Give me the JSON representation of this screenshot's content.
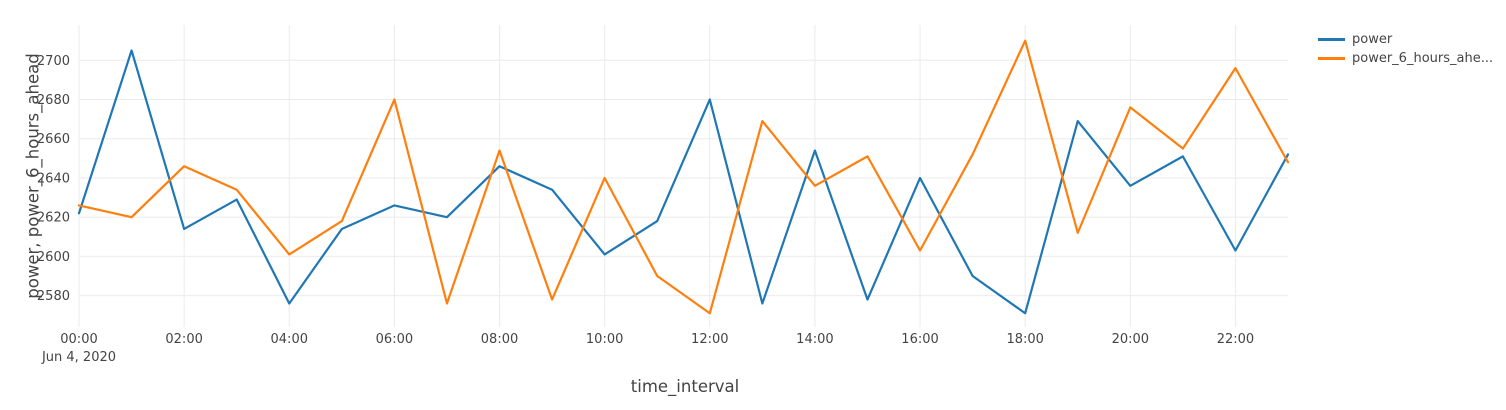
{
  "chart": {
    "legend": {
      "items": [
        {
          "label": "power"
        },
        {
          "label": "power_6_hours_ahe..."
        }
      ]
    }
  },
  "chart_data": {
    "type": "line",
    "title": "",
    "xlabel": "time_interval",
    "ylabel": "power, power_6_hours_ahead",
    "x_axis_secondary_label": "Jun 4, 2020",
    "categories": [
      "00:00",
      "01:00",
      "02:00",
      "03:00",
      "04:00",
      "05:00",
      "06:00",
      "07:00",
      "08:00",
      "09:00",
      "10:00",
      "11:00",
      "12:00",
      "13:00",
      "14:00",
      "15:00",
      "16:00",
      "17:00",
      "18:00",
      "19:00",
      "20:00",
      "21:00",
      "22:00",
      "23:00"
    ],
    "x_tick_labels": [
      "00:00",
      "02:00",
      "04:00",
      "06:00",
      "08:00",
      "10:00",
      "12:00",
      "14:00",
      "16:00",
      "18:00",
      "20:00",
      "22:00"
    ],
    "y_ticks": [
      2580,
      2600,
      2620,
      2640,
      2660,
      2680,
      2700
    ],
    "ylim": [
      2564,
      2718
    ],
    "grid": true,
    "legend_position": "top-right",
    "background": "#ffffff",
    "grid_color": "#ebebeb",
    "text_color": "#444444",
    "series": [
      {
        "name": "power",
        "legend_label": "power",
        "color": "#1f77b4",
        "values": [
          2622,
          2705,
          2614,
          2629,
          2576,
          2614,
          2626,
          2620,
          2646,
          2634,
          2601,
          2618,
          2680,
          2576,
          2654,
          2578,
          2640,
          2590,
          2571,
          2669,
          2636,
          2651,
          2603,
          2652
        ]
      },
      {
        "name": "power_6_hours_ahead",
        "legend_label": "power_6_hours_ahe...",
        "color": "#ff7f0e",
        "values": [
          2626,
          2620,
          2646,
          2634,
          2601,
          2618,
          2680,
          2576,
          2654,
          2578,
          2640,
          2590,
          2571,
          2669,
          2636,
          2651,
          2603,
          2652,
          2710,
          2612,
          2676,
          2655,
          2696,
          2648
        ]
      }
    ]
  }
}
